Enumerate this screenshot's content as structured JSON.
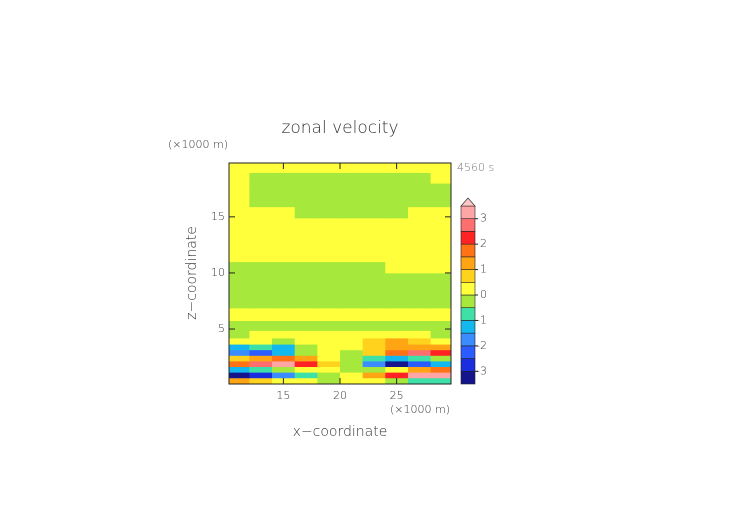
{
  "chart_data": {
    "type": "contourf",
    "title": "zonal velocity",
    "xlabel": "x−coordinate",
    "ylabel": "z−coordinate",
    "x_unit": "(×1000 m)",
    "y_unit": "(×1000 m)",
    "time_label": "4560 s",
    "xlim": [
      10.2,
      29.8
    ],
    "ylim": [
      0.1,
      19.8
    ],
    "xticks": [
      15,
      20,
      25
    ],
    "yticks": [
      5,
      10,
      15
    ],
    "x": [
      11,
      13,
      15,
      17,
      19,
      21,
      23,
      25,
      27,
      29
    ],
    "z": [
      0.4,
      0.9,
      1.4,
      1.9,
      2.4,
      2.9,
      3.4,
      3.9,
      4.5,
      5.25,
      6.25,
      7.5,
      8.5,
      9.5,
      10.5,
      11.5,
      12.5,
      13.5,
      14.5,
      15.3,
      16.5,
      17.5,
      18.5,
      19.4
    ],
    "values": [
      [
        1,
        0.5,
        0.3,
        0.2,
        -0.2,
        0.2,
        0.2,
        -0.3,
        -0.6,
        -1
      ],
      [
        -3.2,
        -3,
        -2,
        -1,
        -0.3,
        0.3,
        1,
        2,
        3,
        3.2
      ],
      [
        -1.5,
        -1,
        -0.2,
        0.3,
        0.2,
        -0.2,
        -0.3,
        0.2,
        1,
        1.5
      ],
      [
        1.5,
        2.5,
        3.2,
        2,
        0.5,
        -0.5,
        -2,
        -3.2,
        -2.5,
        -1.5
      ],
      [
        0.5,
        1,
        1.5,
        1,
        0.3,
        -0.3,
        -1,
        -1.5,
        -1,
        -0.5
      ],
      [
        -2,
        -2.5,
        -1.5,
        -0.5,
        0.2,
        -0.2,
        0.5,
        1.5,
        2.5,
        2
      ],
      [
        -1.2,
        -1,
        -1.3,
        -0.5,
        0.2,
        0.2,
        0.5,
        1,
        1.2,
        1.2
      ],
      [
        0.3,
        0.2,
        -0.3,
        0.2,
        0.3,
        0.3,
        0.8,
        1.2,
        0.6,
        0.2
      ],
      [
        -0.3,
        0.2,
        0.3,
        0.3,
        0.2,
        0.2,
        0.3,
        0.3,
        0.2,
        -0.3
      ],
      [
        -0.2,
        -0.2,
        -0.3,
        -0.2,
        -0.2,
        -0.2,
        -0.2,
        -0.2,
        -0.3,
        -0.2
      ],
      [
        0.2,
        0.2,
        0.2,
        0.2,
        0.2,
        0.2,
        0.2,
        0.2,
        0.2,
        0.2
      ],
      [
        -0.2,
        -0.2,
        -0.2,
        -0.2,
        -0.2,
        -0.2,
        -0.2,
        -0.2,
        -0.2,
        -0.2
      ],
      [
        -0.2,
        -0.2,
        -0.2,
        -0.2,
        -0.2,
        -0.2,
        -0.2,
        -0.2,
        -0.2,
        -0.2
      ],
      [
        -0.2,
        -0.2,
        -0.2,
        -0.2,
        -0.2,
        -0.2,
        -0.2,
        -0.2,
        -0.2,
        -0.2
      ],
      [
        -0.2,
        -0.2,
        -0.2,
        -0.2,
        -0.2,
        -0.2,
        -0.2,
        0.2,
        0.2,
        0.2
      ],
      [
        0.2,
        0.2,
        0.2,
        0.2,
        0.2,
        0.2,
        0.2,
        0.2,
        0.2,
        0.2
      ],
      [
        0.2,
        0.2,
        0.2,
        0.2,
        0.2,
        0.2,
        0.2,
        0.2,
        0.2,
        0.2
      ],
      [
        0.2,
        0.2,
        0.2,
        0.2,
        0.2,
        0.2,
        0.2,
        0.2,
        0.2,
        0.2
      ],
      [
        0.2,
        0.2,
        0.2,
        0.2,
        0.2,
        0.2,
        0.2,
        0.2,
        0.2,
        0.2
      ],
      [
        0.2,
        0.2,
        0.2,
        -0.2,
        -0.2,
        -0.2,
        -0.2,
        -0.2,
        0.2,
        0.2
      ],
      [
        0.2,
        -0.2,
        -0.2,
        -0.2,
        -0.2,
        -0.2,
        -0.2,
        -0.2,
        -0.2,
        -0.2
      ],
      [
        0.2,
        -0.2,
        -0.2,
        -0.2,
        -0.2,
        -0.2,
        -0.2,
        -0.2,
        -0.2,
        -0.2
      ],
      [
        0.2,
        -0.2,
        -0.2,
        -0.2,
        -0.2,
        -0.2,
        -0.2,
        -0.2,
        -0.2,
        0.2
      ],
      [
        0.2,
        0.2,
        0.2,
        0.2,
        0.2,
        0.2,
        0.2,
        0.2,
        0.2,
        0.2
      ]
    ],
    "levels": [
      -3.5,
      -3,
      -2.5,
      -2,
      -1.5,
      -1,
      -0.5,
      0,
      0.5,
      1,
      1.5,
      2,
      2.5,
      3,
      3.5
    ],
    "colors": [
      "#14148c",
      "#1a2ee0",
      "#2a5cff",
      "#3a8cff",
      "#12b8ee",
      "#3ee0a8",
      "#a6e83c",
      "#ffff3c",
      "#ffd21e",
      "#ffa514",
      "#ff7314",
      "#ff2323",
      "#ff6e6e",
      "#ffa5a5"
    ],
    "extend_color": "#ffc8c8",
    "colorbar_ticks": [
      -3,
      -2,
      -1,
      0,
      1,
      2,
      3
    ]
  }
}
